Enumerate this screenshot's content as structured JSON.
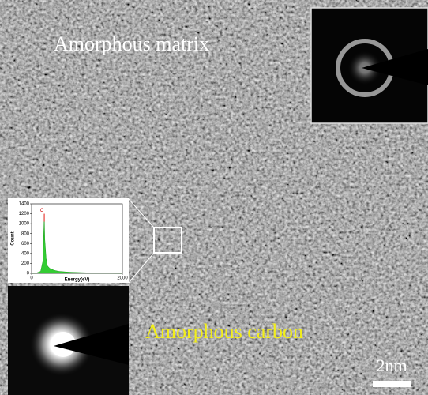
{
  "image": {
    "label_top": "Amorphous matrix",
    "label_bottom": "Amorphous carbon",
    "scale_bar": "2nm"
  },
  "chart_data": {
    "type": "area",
    "x_label": "Energy(eV)",
    "y_label": "Count",
    "annotation": "C",
    "color": "#33cc33",
    "x": [
      0,
      100,
      200,
      250,
      270,
      280,
      290,
      320,
      350,
      400,
      500,
      600,
      800,
      1000,
      1200,
      1400,
      1600,
      1800,
      2000
    ],
    "values": [
      0,
      5,
      40,
      250,
      900,
      1200,
      700,
      300,
      150,
      100,
      60,
      40,
      25,
      18,
      12,
      8,
      5,
      3,
      0
    ],
    "xlim": [
      0,
      2000
    ],
    "ylim": [
      0,
      1400
    ],
    "xticks": [
      0,
      2000
    ],
    "yticks": [
      0,
      200,
      400,
      600,
      800,
      1000,
      1200,
      1400
    ]
  }
}
